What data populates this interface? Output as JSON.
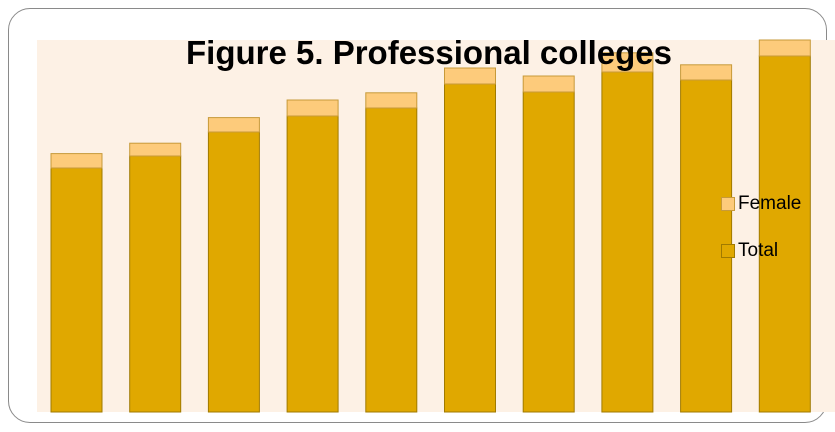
{
  "chart_data": {
    "type": "bar",
    "stacked": true,
    "title": "Figure 5. Professional colleges",
    "xlabel": "",
    "ylabel": "",
    "categories": [
      "",
      "",
      "",
      "",
      "",
      "",
      "",
      "",
      "",
      ""
    ],
    "ylim": [
      0,
      100
    ],
    "series": [
      {
        "name": "Total",
        "color": "#e0a800",
        "values": [
          61,
          64,
          70,
          74,
          76,
          82,
          80,
          85,
          83,
          89
        ]
      },
      {
        "name": "Female",
        "color": "#fdcb7b",
        "values": [
          3.6,
          3.2,
          3.6,
          4.0,
          3.8,
          4.0,
          4.0,
          4.8,
          3.8,
          4.0
        ]
      }
    ],
    "legend_position": "right",
    "grid": false
  }
}
